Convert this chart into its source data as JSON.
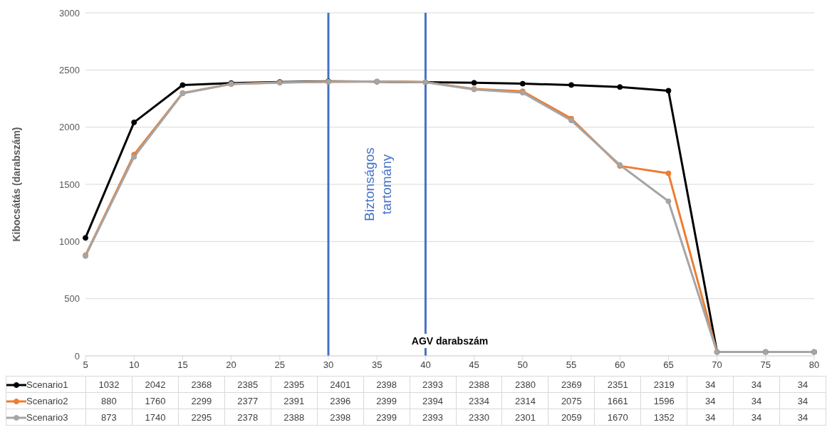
{
  "chart_data": {
    "type": "line",
    "xlabel": "AGV darabszám",
    "ylabel": "Kibocsátás (darabszám)",
    "categories": [
      "5",
      "10",
      "15",
      "20",
      "25",
      "30",
      "35",
      "40",
      "45",
      "50",
      "55",
      "60",
      "65",
      "70",
      "75",
      "80"
    ],
    "series": [
      {
        "name": "Scenario1",
        "color": "#000000",
        "values": [
          1032,
          2042,
          2368,
          2385,
          2395,
          2401,
          2398,
          2393,
          2388,
          2380,
          2369,
          2351,
          2319,
          34,
          34,
          34
        ]
      },
      {
        "name": "Scenario2",
        "color": "#ed7d31",
        "values": [
          880,
          1760,
          2299,
          2377,
          2391,
          2396,
          2399,
          2394,
          2334,
          2314,
          2075,
          1661,
          1596,
          34,
          34,
          34
        ]
      },
      {
        "name": "Scenario3",
        "color": "#a5a5a5",
        "values": [
          873,
          1740,
          2295,
          2378,
          2388,
          2398,
          2399,
          2393,
          2330,
          2301,
          2059,
          1670,
          1352,
          34,
          34,
          34
        ]
      }
    ],
    "ylim": [
      0,
      3000
    ],
    "yticks": [
      0,
      500,
      1000,
      1500,
      2000,
      2500,
      3000
    ],
    "grid": "y",
    "legend": "bottom",
    "marker": "circle",
    "data_labels": true,
    "ref_lines": [
      {
        "axis": "x",
        "value": "30",
        "color": "#4472c4"
      },
      {
        "axis": "x",
        "value": "40",
        "color": "#4472c4"
      }
    ],
    "annotations": [
      "Biztonságos tartomány"
    ]
  }
}
